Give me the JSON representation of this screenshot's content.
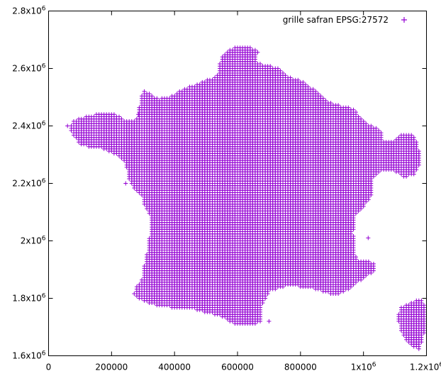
{
  "chart_data": {
    "type": "scatter",
    "title": "",
    "xlabel": "",
    "ylabel": "",
    "xlim": [
      0,
      1200000
    ],
    "ylim": [
      1600000,
      2800000
    ],
    "grid": false,
    "legend_position": "top-right",
    "marker": "plus",
    "x_ticks": [
      {
        "value": 0,
        "label": "0"
      },
      {
        "value": 200000,
        "label": "200000"
      },
      {
        "value": 400000,
        "label": "400000"
      },
      {
        "value": 600000,
        "label": "600000"
      },
      {
        "value": 800000,
        "label": "800000"
      },
      {
        "value": 1000000,
        "label": "1x10",
        "exp": "6"
      },
      {
        "value": 1200000,
        "label": "1.2x10",
        "exp": "6"
      }
    ],
    "y_ticks": [
      {
        "value": 1600000,
        "label": "1.6x10",
        "exp": "6"
      },
      {
        "value": 1800000,
        "label": "1.8x10",
        "exp": "6"
      },
      {
        "value": 2000000,
        "label": "2x10",
        "exp": "6"
      },
      {
        "value": 2200000,
        "label": "2.2x10",
        "exp": "6"
      },
      {
        "value": 2400000,
        "label": "2.4x10",
        "exp": "6"
      },
      {
        "value": 2600000,
        "label": "2.6x10",
        "exp": "6"
      },
      {
        "value": 2800000,
        "label": "2.8x10",
        "exp": "6"
      }
    ],
    "series": [
      {
        "name": "grille safran EPSG:27572",
        "color": "#9400d3",
        "grid_step": 8000,
        "regions": [
          {
            "name": "mainland",
            "polygon": [
              [
                70000,
                2400000
              ],
              [
                75000,
                2415000
              ],
              [
                110000,
                2430000
              ],
              [
                165000,
                2445000
              ],
              [
                215000,
                2440000
              ],
              [
                240000,
                2420000
              ],
              [
                285000,
                2425000
              ],
              [
                290000,
                2490000
              ],
              [
                300000,
                2525000
              ],
              [
                350000,
                2495000
              ],
              [
                390000,
                2505000
              ],
              [
                430000,
                2530000
              ],
              [
                470000,
                2545000
              ],
              [
                525000,
                2570000
              ],
              [
                545000,
                2585000
              ],
              [
                540000,
                2605000
              ],
              [
                550000,
                2640000
              ],
              [
                570000,
                2665000
              ],
              [
                610000,
                2680000
              ],
              [
                650000,
                2670000
              ],
              [
                665000,
                2660000
              ],
              [
                660000,
                2620000
              ],
              [
                700000,
                2610000
              ],
              [
                730000,
                2600000
              ],
              [
                750000,
                2585000
              ],
              [
                765000,
                2570000
              ],
              [
                800000,
                2560000
              ],
              [
                840000,
                2530000
              ],
              [
                870000,
                2500000
              ],
              [
                900000,
                2480000
              ],
              [
                930000,
                2470000
              ],
              [
                970000,
                2460000
              ],
              [
                990000,
                2430000
              ],
              [
                1010000,
                2410000
              ],
              [
                1040000,
                2395000
              ],
              [
                1060000,
                2380000
              ],
              [
                1060000,
                2350000
              ],
              [
                1080000,
                2345000
              ],
              [
                1100000,
                2350000
              ],
              [
                1120000,
                2370000
              ],
              [
                1140000,
                2375000
              ],
              [
                1165000,
                2365000
              ],
              [
                1175000,
                2320000
              ],
              [
                1180000,
                2290000
              ],
              [
                1175000,
                2255000
              ],
              [
                1160000,
                2230000
              ],
              [
                1130000,
                2220000
              ],
              [
                1115000,
                2230000
              ],
              [
                1095000,
                2245000
              ],
              [
                1075000,
                2245000
              ],
              [
                1050000,
                2240000
              ],
              [
                1030000,
                2215000
              ],
              [
                1030000,
                2170000
              ],
              [
                1015000,
                2140000
              ],
              [
                1000000,
                2115000
              ],
              [
                985000,
                2100000
              ],
              [
                970000,
                2085000
              ],
              [
                975000,
                2060000
              ],
              [
                965000,
                2030000
              ],
              [
                975000,
                2000000
              ],
              [
                970000,
                1975000
              ],
              [
                975000,
                1950000
              ],
              [
                985000,
                1930000
              ],
              [
                1020000,
                1930000
              ],
              [
                1040000,
                1915000
              ],
              [
                1035000,
                1890000
              ],
              [
                1020000,
                1885000
              ],
              [
                1005000,
                1870000
              ],
              [
                990000,
                1860000
              ],
              [
                975000,
                1850000
              ],
              [
                960000,
                1835000
              ],
              [
                940000,
                1825000
              ],
              [
                920000,
                1810000
              ],
              [
                900000,
                1815000
              ],
              [
                880000,
                1820000
              ],
              [
                840000,
                1835000
              ],
              [
                800000,
                1840000
              ],
              [
                780000,
                1845000
              ],
              [
                750000,
                1840000
              ],
              [
                720000,
                1830000
              ],
              [
                700000,
                1825000
              ],
              [
                690000,
                1800000
              ],
              [
                680000,
                1780000
              ],
              [
                675000,
                1745000
              ],
              [
                680000,
                1720000
              ],
              [
                660000,
                1710000
              ],
              [
                640000,
                1710000
              ],
              [
                600000,
                1710000
              ],
              [
                580000,
                1715000
              ],
              [
                560000,
                1730000
              ],
              [
                540000,
                1740000
              ],
              [
                500000,
                1750000
              ],
              [
                470000,
                1760000
              ],
              [
                440000,
                1765000
              ],
              [
                410000,
                1765000
              ],
              [
                380000,
                1770000
              ],
              [
                350000,
                1770000
              ],
              [
                330000,
                1780000
              ],
              [
                290000,
                1795000
              ],
              [
                270000,
                1815000
              ],
              [
                275000,
                1835000
              ],
              [
                290000,
                1850000
              ],
              [
                300000,
                1880000
              ],
              [
                305000,
                1920000
              ],
              [
                315000,
                1970000
              ],
              [
                320000,
                2010000
              ],
              [
                325000,
                2050000
              ],
              [
                320000,
                2090000
              ],
              [
                305000,
                2120000
              ],
              [
                300000,
                2150000
              ],
              [
                290000,
                2165000
              ],
              [
                270000,
                2185000
              ],
              [
                255000,
                2215000
              ],
              [
                250000,
                2250000
              ],
              [
                240000,
                2275000
              ],
              [
                230000,
                2290000
              ],
              [
                215000,
                2300000
              ],
              [
                195000,
                2310000
              ],
              [
                170000,
                2320000
              ],
              [
                140000,
                2325000
              ],
              [
                110000,
                2330000
              ],
              [
                95000,
                2345000
              ],
              [
                80000,
                2365000
              ],
              [
                70000,
                2385000
              ]
            ]
          },
          {
            "name": "corsica",
            "polygon": [
              [
                1115000,
                1765000
              ],
              [
                1135000,
                1780000
              ],
              [
                1160000,
                1790000
              ],
              [
                1175000,
                1800000
              ],
              [
                1190000,
                1790000
              ],
              [
                1195000,
                1760000
              ],
              [
                1200000,
                1720000
              ],
              [
                1195000,
                1690000
              ],
              [
                1185000,
                1650000
              ],
              [
                1175000,
                1620000
              ],
              [
                1160000,
                1630000
              ],
              [
                1140000,
                1650000
              ],
              [
                1125000,
                1670000
              ],
              [
                1115000,
                1700000
              ],
              [
                1110000,
                1730000
              ]
            ]
          }
        ],
        "outliers": [
          [
            60000,
            2400000
          ],
          [
            245000,
            2200000
          ],
          [
            285000,
            2440000
          ],
          [
            700000,
            1720000
          ],
          [
            1015000,
            2010000
          ]
        ]
      }
    ]
  }
}
